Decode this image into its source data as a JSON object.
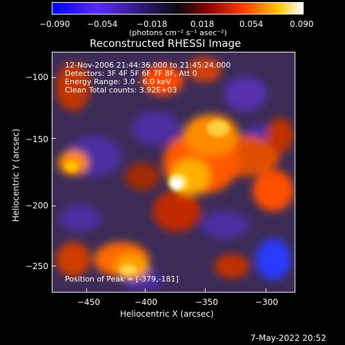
{
  "colorbar": {
    "ticks": [
      "−0.090",
      "−0.054",
      "−0.018",
      "0.018",
      "0.054",
      "0.090"
    ],
    "units": "(photons cm⁻² s⁻¹ asec⁻²)"
  },
  "plot": {
    "title": "Reconstructed RHESSI Image",
    "info": {
      "line1": "12-Nov-2006 21:44:36.000 to 21:45:24.000",
      "line2": "Detectors: 3F 4F 5F 6F 7F 8F, Att 0",
      "line3": "Energy Range: 3.0 - 6.0 keV",
      "line4": "Clean     Total counts: 3.92E+03"
    },
    "peak": "Position of Peak = [-379,-181]",
    "xlabel": "Heliocentric X (arcsec)",
    "ylabel": "Heliocentric Y (arcsec)",
    "xticks": [
      "−450",
      "−400",
      "−350",
      "−300"
    ],
    "yticks": [
      "−100",
      "−150",
      "−200",
      "−250"
    ]
  },
  "footer": {
    "date": "7-May-2022 20:52"
  },
  "colors": {
    "colorbar_stops": [
      "#0000ff",
      "#6f2cff",
      "#000000",
      "#8b0000",
      "#ff3b00",
      "#ffd000",
      "#ffffff"
    ],
    "background": "#000000"
  }
}
